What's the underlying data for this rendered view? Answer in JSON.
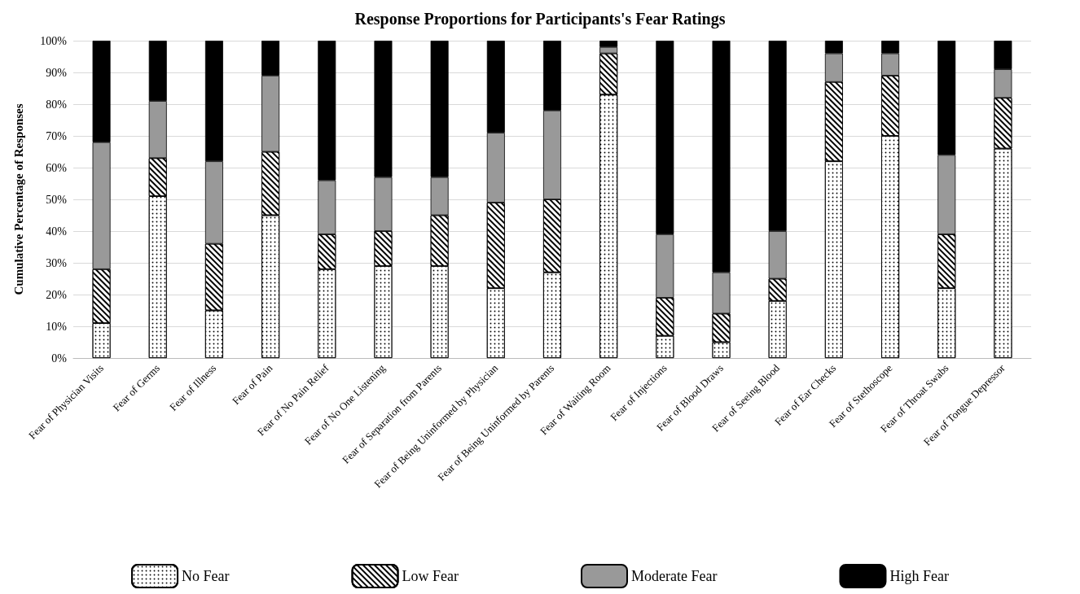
{
  "chart_data": {
    "type": "bar",
    "title": "Response Proportions for Participants's Fear Ratings",
    "ylabel": "Cumulative Percentage of Responses",
    "categories": [
      "Fear of Physician Visits",
      "Fear of Germs",
      "Fear of Illness",
      "Fear of Pain",
      "Fear of No Pain Relief",
      "Fear of No One Listening",
      "Fear of Separation from Parents",
      "Fear of Being Uninformed by Physician",
      "Fear of Being Uninformed by Parents",
      "Fear of Waiting Room",
      "Fear of Injections",
      "Fear of Blood Draws",
      "Fear of Seeing Blood",
      "Fear of Ear Checks",
      "Fear of Stethoscope",
      "Fear of Throat Swabs",
      "Fear of Tongue Depressor"
    ],
    "series": [
      {
        "name": "No Fear",
        "color": "#ffffff",
        "values": [
          11,
          51,
          15,
          45,
          28,
          29,
          29,
          22,
          27,
          83,
          7,
          5,
          18,
          62,
          70,
          22,
          66
        ]
      },
      {
        "name": "Low Fear",
        "color": "#ffffff",
        "values": [
          17,
          12,
          21,
          20,
          11,
          11,
          16,
          27,
          23,
          13,
          12,
          9,
          7,
          25,
          19,
          17,
          16
        ]
      },
      {
        "name": "Moderate Fear",
        "color": "#999999",
        "values": [
          40,
          18,
          26,
          24,
          17,
          17,
          12,
          22,
          28,
          2,
          20,
          13,
          15,
          9,
          7,
          25,
          9
        ]
      },
      {
        "name": "High Fear",
        "color": "#000000",
        "values": [
          32,
          19,
          38,
          11,
          44,
          43,
          43,
          29,
          22,
          2,
          61,
          73,
          60,
          4,
          4,
          36,
          9
        ]
      }
    ],
    "stacked": true,
    "ylim": [
      0,
      100
    ],
    "yticks": [
      {
        "value": 0,
        "label": "0%"
      },
      {
        "value": 10,
        "label": "10%"
      },
      {
        "value": 20,
        "label": "20%"
      },
      {
        "value": 30,
        "label": "30%"
      },
      {
        "value": 40,
        "label": "40%"
      },
      {
        "value": 50,
        "label": "50%"
      },
      {
        "value": 60,
        "label": "60%"
      },
      {
        "value": 70,
        "label": "70%"
      },
      {
        "value": 80,
        "label": "80%"
      },
      {
        "value": 90,
        "label": "90%"
      },
      {
        "value": 100,
        "label": "100%"
      }
    ],
    "grid": "y",
    "legend": "bottom"
  }
}
